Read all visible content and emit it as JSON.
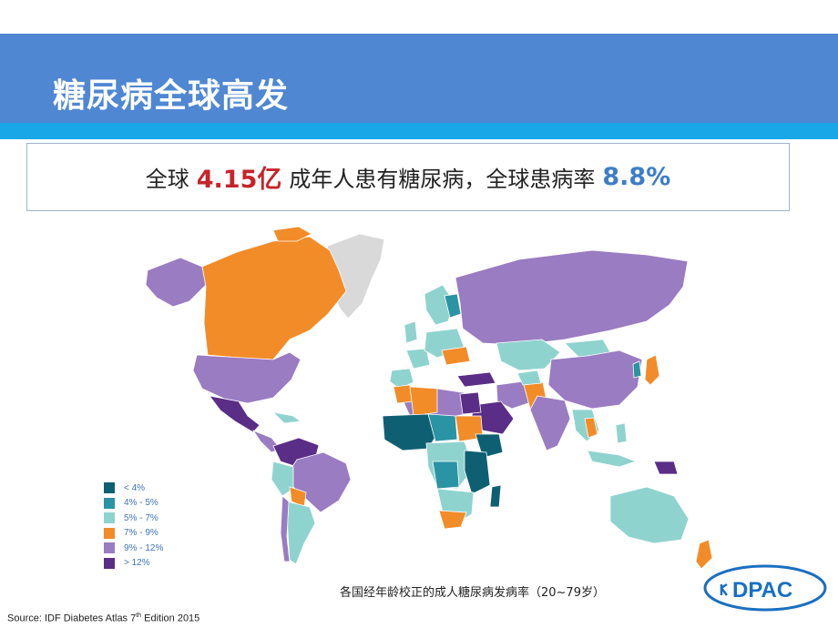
{
  "title": "糖尿病全球高发",
  "stat": {
    "prefix": "全球",
    "count": "4.15亿",
    "middle": "成年人患有糖尿病，全球患病率",
    "rate": "8.8%"
  },
  "legend": [
    {
      "label": "< 4%",
      "color": "#0f5f73"
    },
    {
      "label": "4% - 5%",
      "color": "#2a93a4"
    },
    {
      "label": "5% - 7%",
      "color": "#8fd3cf"
    },
    {
      "label": "7% - 9%",
      "color": "#f28c28"
    },
    {
      "label": "9% - 12%",
      "color": "#9a7cc2"
    },
    {
      "label": "> 12%",
      "color": "#5a2d86"
    }
  ],
  "map_caption": "各国经年龄校正的成人糖尿病发病率（20~79岁）",
  "source": {
    "prefix": "Source: IDF Diabetes Atlas 7",
    "sup": "th",
    "suffix": " Edition 2015"
  },
  "logo_text": "DPAC",
  "colors": {
    "header": "#4f87d3",
    "stripe": "#1aa7e8",
    "no_data": "#d9d9d9"
  }
}
